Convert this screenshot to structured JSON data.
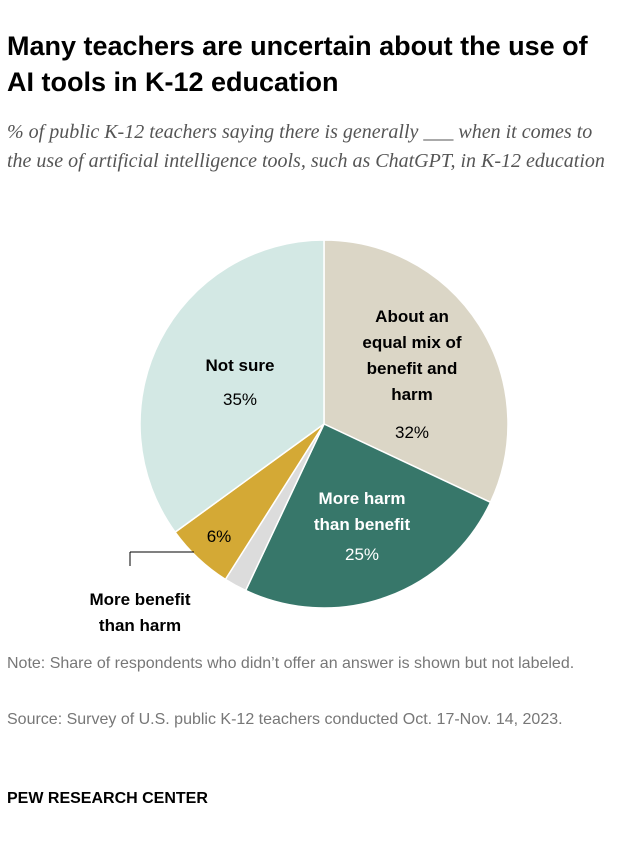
{
  "chart_data": {
    "type": "pie",
    "title": "Many teachers are uncertain about the use of AI tools in K-12 education",
    "subtitle": "% of public K-12 teachers saying there is generally ___ when it comes to the use of artificial intelligence tools, such as ChatGPT, in K-12 education",
    "slices": [
      {
        "name": "About an equal mix of benefit and harm",
        "label_lines": [
          "About an",
          "equal mix of",
          "benefit and",
          "harm"
        ],
        "value": 32,
        "value_label": "32%",
        "color": "#dbd6c6"
      },
      {
        "name": "More harm than benefit",
        "label_lines": [
          "More harm",
          "than benefit"
        ],
        "value": 25,
        "value_label": "25%",
        "color": "#37776a"
      },
      {
        "name": "No answer",
        "label_lines": [],
        "value": 2,
        "value_label": "",
        "color": "#dcdcdc"
      },
      {
        "name": "More benefit than harm",
        "label_lines": [
          "More benefit",
          "than harm"
        ],
        "value": 6,
        "value_label": "6%",
        "color": "#d4a935"
      },
      {
        "name": "Not sure",
        "label_lines": [
          "Not sure"
        ],
        "value": 35,
        "value_label": "35%",
        "color": "#d3e8e4"
      }
    ],
    "start": "12 o'clock",
    "direction": "clockwise"
  },
  "note": "Note: Share of respondents who didn’t offer an answer is shown but not labeled.",
  "source": "Source: Survey of U.S. public K-12 teachers conducted Oct. 17-Nov. 14, 2023.",
  "brand": "PEW RESEARCH CENTER"
}
